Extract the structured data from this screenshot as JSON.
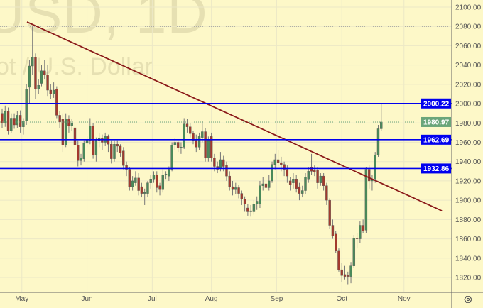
{
  "watermark": {
    "symbol_line": "USD, 1D",
    "description_line": "ot / U.S. Dollar"
  },
  "colors": {
    "background": "#fdf8c8",
    "up": "#4a8a5a",
    "down": "#a33a2e",
    "level": "#0000ee",
    "trendline": "#8b1a1a",
    "last_price": "#6aa57a",
    "grid": "#ece8c6"
  },
  "icons": {
    "settings": "gear-icon"
  },
  "chart_data": {
    "type": "candlestick",
    "title": "",
    "ylim": [
      1810,
      2105
    ],
    "y_ticks": [
      "2100.00",
      "2080.00",
      "2060.00",
      "2040.00",
      "2020.00",
      "2000.00",
      "1980.00",
      "1960.00",
      "1940.00",
      "1920.00",
      "1900.00",
      "1880.00",
      "1860.00",
      "1840.00",
      "1820.00"
    ],
    "x_ticks": [
      {
        "label": "May",
        "index": 6.5
      },
      {
        "label": "Jun",
        "index": 28
      },
      {
        "label": "Jul",
        "index": 49.5
      },
      {
        "label": "Aug",
        "index": 69
      },
      {
        "label": "Sep",
        "index": 90.5
      },
      {
        "label": "Oct",
        "index": 112
      },
      {
        "label": "Nov",
        "index": 132.5
      }
    ],
    "grid": true,
    "candles_ohlc": [
      [
        1990,
        1995,
        1975,
        1980
      ],
      [
        1980,
        1998,
        1976,
        1992
      ],
      [
        1992,
        1996,
        1968,
        1972
      ],
      [
        1972,
        1990,
        1970,
        1985
      ],
      [
        1985,
        1990,
        1974,
        1978
      ],
      [
        1978,
        1992,
        1975,
        1988
      ],
      [
        1988,
        1993,
        1970,
        1976
      ],
      [
        1976,
        1985,
        1968,
        1982
      ],
      [
        1982,
        2020,
        1978,
        2015
      ],
      [
        2017,
        2045,
        2000,
        2039
      ],
      [
        2039,
        2080,
        2030,
        2048
      ],
      [
        2048,
        2052,
        2005,
        2015
      ],
      [
        2015,
        2025,
        2010,
        2019
      ],
      [
        2021,
        2040,
        2018,
        2034
      ],
      [
        2034,
        2045,
        2025,
        2030
      ],
      [
        2030,
        2040,
        2008,
        2014
      ],
      [
        2014,
        2020,
        2005,
        2010
      ],
      [
        2010,
        2022,
        2006,
        2014
      ],
      [
        2015,
        2018,
        1985,
        1988
      ],
      [
        1988,
        1992,
        1975,
        1981
      ],
      [
        1984,
        1990,
        1950,
        1957
      ],
      [
        1957,
        1990,
        1955,
        1984
      ],
      [
        1984,
        1988,
        1970,
        1977
      ],
      [
        1977,
        1984,
        1972,
        1980
      ],
      [
        1975,
        1980,
        1950,
        1957
      ],
      [
        1957,
        1962,
        1935,
        1941
      ],
      [
        1941,
        1948,
        1936,
        1944
      ],
      [
        1943,
        1962,
        1940,
        1959
      ],
      [
        1959,
        1966,
        1955,
        1962
      ],
      [
        1962,
        1985,
        1958,
        1977
      ],
      [
        1977,
        1980,
        1943,
        1947
      ],
      [
        1947,
        1965,
        1940,
        1962
      ],
      [
        1962,
        1970,
        1955,
        1964
      ],
      [
        1964,
        1968,
        1952,
        1960
      ],
      [
        1960,
        1970,
        1956,
        1966
      ],
      [
        1966,
        1968,
        1950,
        1958
      ],
      [
        1958,
        1962,
        1938,
        1943
      ],
      [
        1943,
        1962,
        1940,
        1958
      ],
      [
        1958,
        1962,
        1950,
        1956
      ],
      [
        1956,
        1958,
        1945,
        1949
      ],
      [
        1951,
        1955,
        1932,
        1936
      ],
      [
        1936,
        1940,
        1925,
        1932
      ],
      [
        1932,
        1934,
        1910,
        1914
      ],
      [
        1914,
        1925,
        1910,
        1920
      ],
      [
        1918,
        1930,
        1915,
        1923
      ],
      [
        1923,
        1928,
        1905,
        1910
      ],
      [
        1914,
        1918,
        1903,
        1907
      ],
      [
        1907,
        1912,
        1895,
        1908
      ],
      [
        1907,
        1920,
        1903,
        1918
      ],
      [
        1918,
        1926,
        1912,
        1922
      ],
      [
        1922,
        1930,
        1918,
        1926
      ],
      [
        1926,
        1930,
        1908,
        1913
      ],
      [
        1915,
        1918,
        1905,
        1911
      ],
      [
        1911,
        1932,
        1908,
        1926
      ],
      [
        1926,
        1930,
        1922,
        1927
      ],
      [
        1925,
        1935,
        1920,
        1932
      ],
      [
        1932,
        1960,
        1930,
        1957
      ],
      [
        1957,
        1964,
        1952,
        1960
      ],
      [
        1960,
        1962,
        1950,
        1954
      ],
      [
        1955,
        1960,
        1948,
        1955
      ],
      [
        1955,
        1985,
        1953,
        1979
      ],
      [
        1979,
        1984,
        1970,
        1976
      ],
      [
        1976,
        1980,
        1965,
        1969
      ],
      [
        1969,
        1972,
        1958,
        1962
      ],
      [
        1962,
        1968,
        1950,
        1955
      ],
      [
        1955,
        1970,
        1952,
        1966
      ],
      [
        1965,
        1982,
        1960,
        1971
      ],
      [
        1971,
        1975,
        1940,
        1944
      ],
      [
        1944,
        1966,
        1940,
        1962
      ],
      [
        1966,
        1970,
        1940,
        1944
      ],
      [
        1944,
        1948,
        1930,
        1935
      ],
      [
        1935,
        1940,
        1928,
        1932
      ],
      [
        1933,
        1950,
        1930,
        1942
      ],
      [
        1942,
        1946,
        1930,
        1935
      ],
      [
        1936,
        1940,
        1920,
        1925
      ],
      [
        1925,
        1930,
        1910,
        1914
      ],
      [
        1914,
        1920,
        1905,
        1911
      ],
      [
        1911,
        1918,
        1906,
        1913
      ],
      [
        1913,
        1916,
        1902,
        1907
      ],
      [
        1907,
        1910,
        1895,
        1901
      ],
      [
        1901,
        1904,
        1888,
        1896
      ],
      [
        1892,
        1896,
        1884,
        1888
      ],
      [
        1888,
        1895,
        1883,
        1889
      ],
      [
        1888,
        1900,
        1885,
        1896
      ],
      [
        1896,
        1904,
        1890,
        1899
      ],
      [
        1896,
        1920,
        1892,
        1915
      ],
      [
        1915,
        1924,
        1910,
        1917
      ],
      [
        1917,
        1922,
        1905,
        1913
      ],
      [
        1913,
        1926,
        1910,
        1920
      ],
      [
        1920,
        1940,
        1918,
        1937
      ],
      [
        1937,
        1948,
        1932,
        1942
      ],
      [
        1942,
        1952,
        1935,
        1939
      ],
      [
        1939,
        1945,
        1930,
        1937
      ],
      [
        1937,
        1940,
        1925,
        1932
      ],
      [
        1932,
        1936,
        1918,
        1925
      ],
      [
        1920,
        1924,
        1910,
        1916
      ],
      [
        1918,
        1928,
        1912,
        1922
      ],
      [
        1922,
        1926,
        1908,
        1912
      ],
      [
        1914,
        1918,
        1900,
        1907
      ],
      [
        1907,
        1915,
        1903,
        1910
      ],
      [
        1910,
        1928,
        1906,
        1924
      ],
      [
        1922,
        1934,
        1918,
        1930
      ],
      [
        1934,
        1948,
        1926,
        1930
      ],
      [
        1931,
        1936,
        1925,
        1929
      ],
      [
        1931,
        1934,
        1912,
        1918
      ],
      [
        1918,
        1928,
        1915,
        1925
      ],
      [
        1925,
        1928,
        1910,
        1915
      ],
      [
        1915,
        1918,
        1895,
        1900
      ],
      [
        1900,
        1902,
        1870,
        1874
      ],
      [
        1874,
        1880,
        1860,
        1863
      ],
      [
        1865,
        1868,
        1845,
        1848
      ],
      [
        1848,
        1850,
        1826,
        1828
      ],
      [
        1828,
        1835,
        1815,
        1822
      ],
      [
        1823,
        1832,
        1818,
        1821
      ],
      [
        1822,
        1826,
        1813,
        1821
      ],
      [
        1821,
        1836,
        1814,
        1832
      ],
      [
        1832,
        1864,
        1830,
        1861
      ],
      [
        1861,
        1866,
        1850,
        1860
      ],
      [
        1860,
        1878,
        1856,
        1874
      ],
      [
        1874,
        1880,
        1866,
        1868
      ],
      [
        1869,
        1934,
        1866,
        1932
      ],
      [
        1932,
        1936,
        1912,
        1920
      ],
      [
        1920,
        1926,
        1910,
        1922
      ],
      [
        1922,
        1950,
        1918,
        1947
      ],
      [
        1947,
        1978,
        1945,
        1974
      ],
      [
        1974,
        2000,
        1972,
        1981
      ]
    ],
    "horizontal_levels": [
      {
        "label": "2000.22",
        "price": 2000.22,
        "kind": "level"
      },
      {
        "label": "1962.69",
        "price": 1962.69,
        "kind": "level"
      },
      {
        "label": "1932.86",
        "price": 1932.86,
        "kind": "level"
      }
    ],
    "last_price": {
      "label": "1980.97",
      "price": 1980.97
    },
    "dotted_line_price": 2080,
    "trendline": {
      "start": {
        "index": 8.2,
        "price": 2084.6
      },
      "end": {
        "index": 145,
        "price": 1889
      }
    }
  }
}
